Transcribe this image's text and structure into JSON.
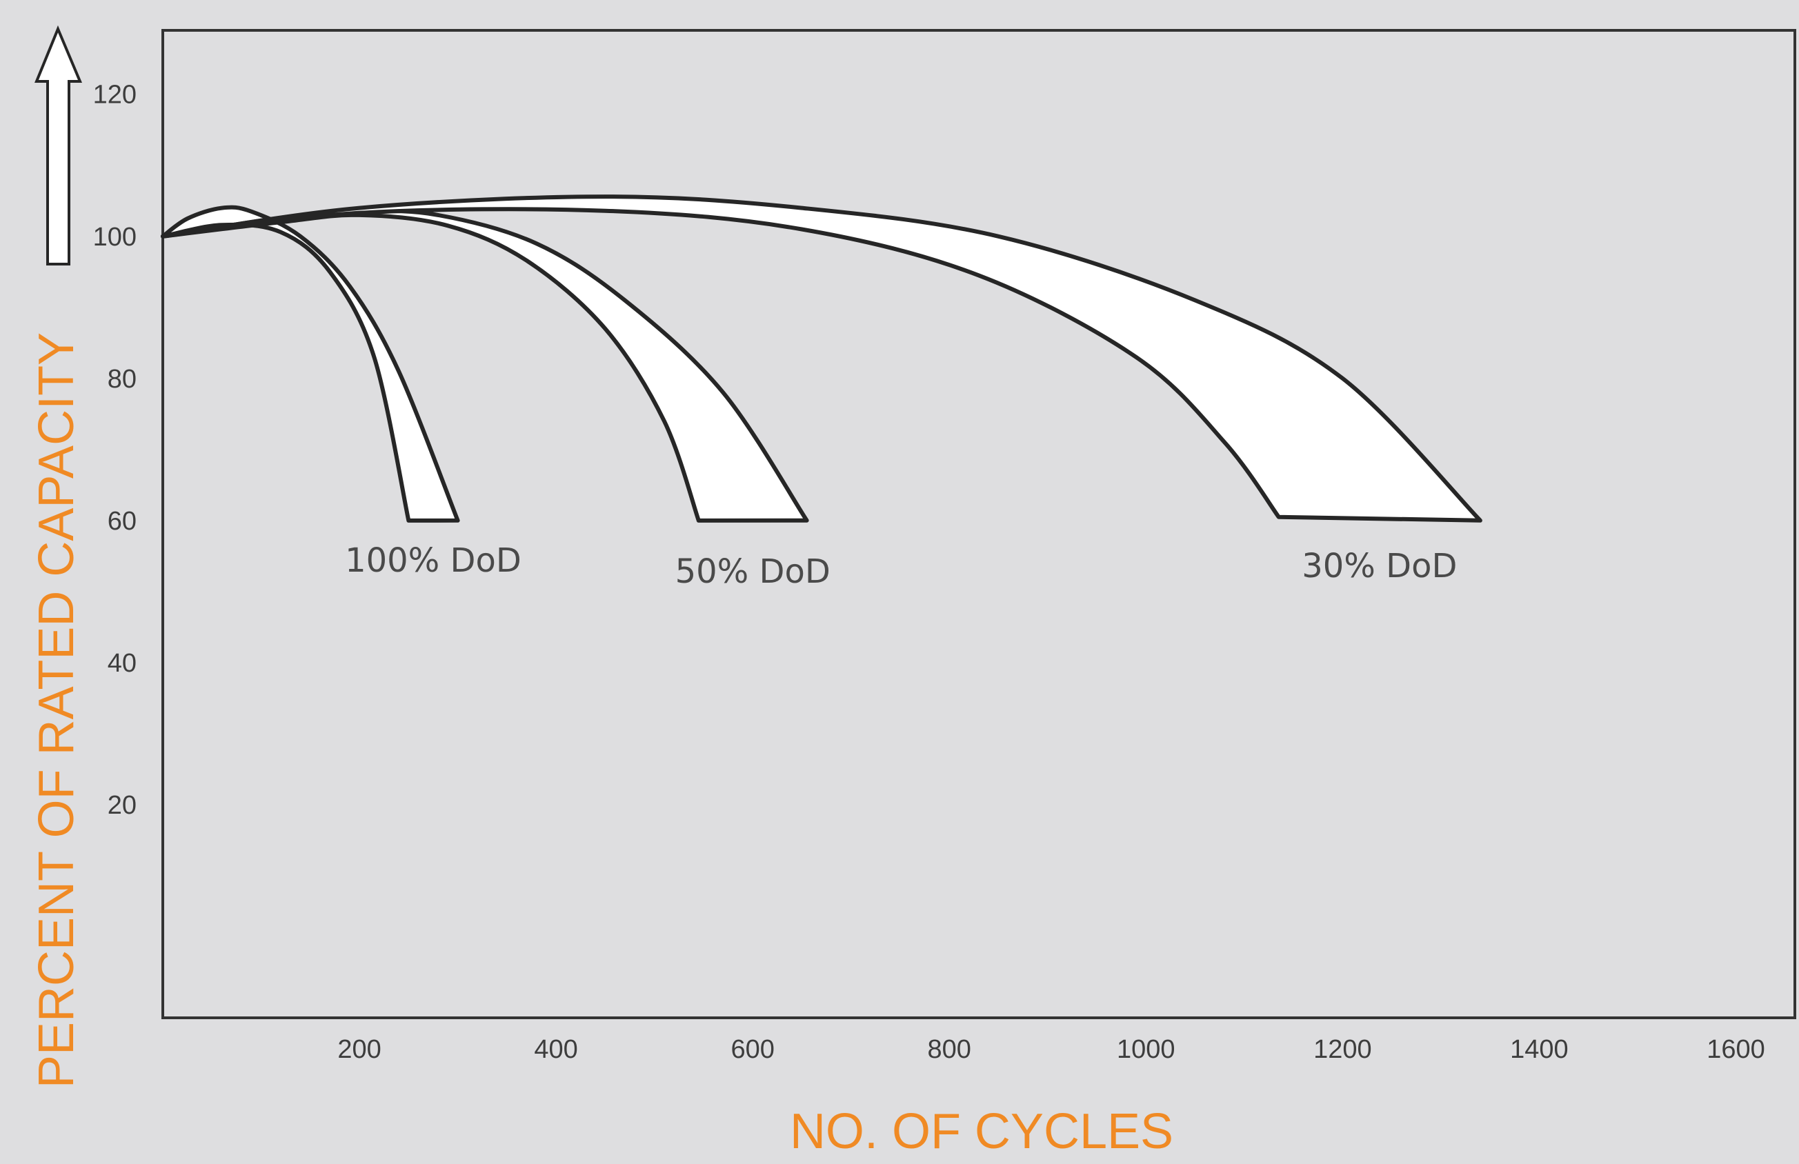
{
  "chart_data": {
    "type": "area",
    "xlabel": "NO. OF CYCLES",
    "ylabel": "PERCENT OF RATED CAPACITY",
    "x_ticks": [
      "200",
      "400",
      "600",
      "800",
      "1000",
      "1200",
      "1400",
      "1600"
    ],
    "y_ticks": [
      "20",
      "40",
      "60",
      "80",
      "100",
      "120"
    ],
    "xlim": [
      0,
      1660
    ],
    "ylim": [
      -10,
      129
    ],
    "grid": false,
    "series": [
      {
        "name": "100% DoD",
        "upper": {
          "x": [
            0,
            25,
            60,
            90,
            140,
            190,
            240,
            300
          ],
          "y": [
            100,
            102.5,
            104,
            103.5,
            100,
            93,
            81,
            60
          ]
        },
        "lower": {
          "x": [
            0,
            60,
            120,
            170,
            215,
            250
          ],
          "y": [
            100,
            101.6,
            100.6,
            95,
            83,
            60
          ]
        }
      },
      {
        "name": "50% DoD",
        "upper": {
          "x": [
            0,
            120,
            200,
            280,
            380,
            470,
            570,
            655
          ],
          "y": [
            100,
            102.6,
            103.5,
            103,
            99,
            91,
            78,
            60
          ]
        },
        "lower": {
          "x": [
            0,
            120,
            200,
            290,
            370,
            450,
            510,
            545
          ],
          "y": [
            100,
            102,
            103,
            101.5,
            96.6,
            87,
            74,
            60
          ]
        }
      },
      {
        "name": "30% DoD",
        "upper": {
          "x": [
            0,
            200,
            450,
            650,
            850,
            1050,
            1200,
            1340
          ],
          "y": [
            100,
            104,
            105.6,
            104,
            100,
            91,
            80,
            60
          ]
        },
        "lower": {
          "x": [
            0,
            200,
            450,
            650,
            830,
            990,
            1080,
            1135
          ],
          "y": [
            100,
            103.3,
            103.6,
            101,
            94.5,
            83,
            71,
            60.5
          ]
        }
      }
    ],
    "colors": {
      "axis_title": "#f08a24",
      "band_fill": "#ffffff",
      "band_stroke": "#262626",
      "background": "#dedee0"
    }
  }
}
